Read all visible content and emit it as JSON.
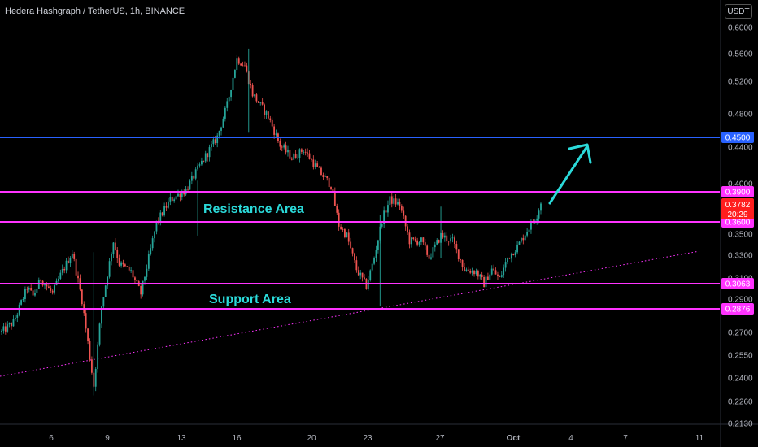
{
  "header": {
    "title": "Hedera Hashgraph / TetherUS, 1h, BINANCE",
    "currency": "USDT"
  },
  "colors": {
    "background": "#000000",
    "up_candle": "#26a69a",
    "down_candle": "#ef5350",
    "magenta_level": "#ff33ff",
    "blue_level": "#2962ff",
    "annotation": "#2bd9d9",
    "last_price_tag": "#ff1e1e"
  },
  "chart_data": {
    "type": "candlestick",
    "title": "Hedera Hashgraph / TetherUS, 1h, BINANCE",
    "y_scale": "log",
    "ylim": [
      0.213,
      0.62
    ],
    "y_ticks": [
      "0.6000",
      "0.5600",
      "0.5200",
      "0.4800",
      "0.4400",
      "0.4000",
      "0.3500",
      "0.3300",
      "0.3100",
      "0.2900",
      "0.2700",
      "0.2550",
      "0.2400",
      "0.2260",
      "0.2130"
    ],
    "x_ticks": [
      "6",
      "9",
      "13",
      "16",
      "20",
      "23",
      "27",
      "Oct",
      "4",
      "7",
      "11"
    ],
    "price_path": [
      [
        0,
        0.271
      ],
      [
        6,
        0.278
      ],
      [
        9,
        0.289
      ],
      [
        13,
        0.305
      ],
      [
        16,
        0.298
      ],
      [
        20,
        0.312
      ],
      [
        26,
        0.3
      ],
      [
        30,
        0.315
      ],
      [
        36,
        0.335
      ],
      [
        41,
        0.295
      ],
      [
        47,
        0.235
      ],
      [
        51,
        0.29
      ],
      [
        57,
        0.345
      ],
      [
        60,
        0.325
      ],
      [
        66,
        0.318
      ],
      [
        71,
        0.3
      ],
      [
        79,
        0.362
      ],
      [
        86,
        0.385
      ],
      [
        94,
        0.395
      ],
      [
        102,
        0.425
      ],
      [
        110,
        0.455
      ],
      [
        115,
        0.495
      ],
      [
        120,
        0.56
      ],
      [
        124,
        0.55
      ],
      [
        128,
        0.51
      ],
      [
        136,
        0.48
      ],
      [
        142,
        0.445
      ],
      [
        148,
        0.43
      ],
      [
        154,
        0.44
      ],
      [
        162,
        0.415
      ],
      [
        168,
        0.4
      ],
      [
        172,
        0.36
      ],
      [
        176,
        0.35
      ],
      [
        181,
        0.32
      ],
      [
        186,
        0.306
      ],
      [
        190,
        0.33
      ],
      [
        194,
        0.365
      ],
      [
        198,
        0.385
      ],
      [
        203,
        0.38
      ],
      [
        208,
        0.345
      ],
      [
        214,
        0.345
      ],
      [
        218,
        0.33
      ],
      [
        224,
        0.35
      ],
      [
        230,
        0.345
      ],
      [
        236,
        0.32
      ],
      [
        242,
        0.318
      ],
      [
        246,
        0.308
      ],
      [
        250,
        0.32
      ],
      [
        254,
        0.312
      ],
      [
        258,
        0.33
      ],
      [
        263,
        0.34
      ],
      [
        268,
        0.355
      ],
      [
        273,
        0.37
      ],
      [
        275,
        0.382
      ]
    ],
    "hline_levels": [
      {
        "value": 0.45,
        "label": "0.4500",
        "color": "#2962ff"
      },
      {
        "value": 0.39,
        "label": "0.3900",
        "color": "#ff33ff"
      },
      {
        "value": 0.36,
        "label": "0.3600",
        "color": "#ff33ff"
      },
      {
        "value": 0.3063,
        "label": "0.3063",
        "color": "#ff33ff"
      },
      {
        "value": 0.2876,
        "label": "0.2876",
        "color": "#ff33ff"
      }
    ],
    "last_price": {
      "value": "0.3782",
      "countdown": "20:29"
    },
    "trendline": "rising dotted magenta line from lower-left to right",
    "annotations": [
      "Resistance Area",
      "Support Area"
    ],
    "forecast_arrow": "upward cyan arrow toward 0.4500"
  }
}
